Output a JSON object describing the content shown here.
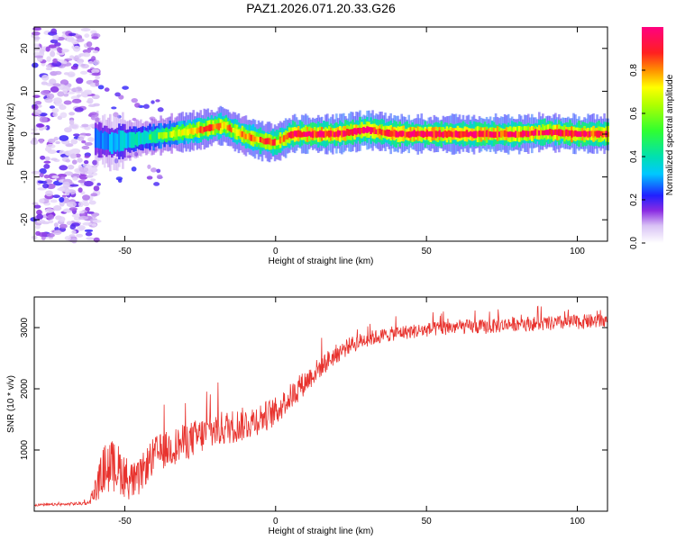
{
  "title": "PAZ1.2026.071.20.33.G26",
  "colors": {
    "background": "#ffffff",
    "snr_line": "#e8322d",
    "track_core": "#e8322d",
    "noise": "#8a2be2"
  },
  "chart_data": [
    {
      "type": "heatmap",
      "title": "PAZ1.2026.071.20.33.G26",
      "xlabel": "Height of straight line (km)",
      "ylabel": "Frequency (Hz)",
      "xlim": [
        -80,
        110
      ],
      "ylim": [
        -25,
        25
      ],
      "xticks": [
        -50,
        0,
        50,
        100
      ],
      "yticks": [
        -20,
        -10,
        0,
        10,
        20
      ],
      "colorbar": {
        "label": "Normalized spectral amplitude",
        "range": [
          0,
          1
        ],
        "ticks": [
          0.0,
          0.2,
          0.4,
          0.6,
          0.8
        ],
        "colormap": "white-violet-blue-cyan-green-yellow-red-magenta"
      },
      "noise_region_x": [
        -80,
        -60
      ],
      "ridge": {
        "x": [
          -60,
          -55,
          -50,
          -45,
          -40,
          -35,
          -30,
          -25,
          -20,
          -17,
          -15,
          -10,
          -5,
          0,
          5,
          10,
          15,
          20,
          25,
          30,
          35,
          40,
          50,
          60,
          70,
          80,
          90,
          100,
          110
        ],
        "freq": [
          -1.0,
          -2.0,
          -1.5,
          -1.0,
          -0.5,
          0.0,
          0.5,
          1.0,
          1.8,
          2.0,
          1.0,
          -0.5,
          -1.5,
          -2.0,
          0.0,
          0.0,
          0.0,
          0.0,
          0.5,
          1.0,
          0.5,
          0.0,
          0.0,
          0.0,
          0.0,
          0.0,
          0.5,
          0.0,
          0.0
        ],
        "amplitude": [
          0.35,
          0.4,
          0.45,
          0.5,
          0.55,
          0.65,
          0.75,
          0.8,
          0.85,
          0.8,
          0.75,
          0.8,
          0.85,
          0.8,
          0.9,
          0.95,
          0.95,
          0.95,
          0.9,
          0.95,
          0.9,
          0.95,
          0.95,
          0.9,
          0.95,
          0.9,
          0.9,
          0.95,
          0.9
        ]
      }
    },
    {
      "type": "line",
      "xlabel": "Height of straight line (km)",
      "ylabel": "SNR (10 * v/v)",
      "xlim": [
        -80,
        110
      ],
      "ylim": [
        0,
        3500
      ],
      "xticks": [
        -50,
        0,
        50,
        100
      ],
      "yticks": [
        1000,
        2000,
        3000
      ],
      "series": [
        {
          "name": "SNR",
          "x": [
            -80,
            -70,
            -62,
            -59,
            -57,
            -55,
            -52,
            -49,
            -46,
            -43,
            -40,
            -35,
            -30,
            -25,
            -20,
            -15,
            -10,
            -5,
            0,
            5,
            10,
            15,
            20,
            25,
            30,
            35,
            40,
            50,
            60,
            70,
            80,
            90,
            100,
            110
          ],
          "values": [
            100,
            110,
            130,
            400,
            650,
            700,
            650,
            500,
            450,
            700,
            900,
            1000,
            1100,
            1200,
            1300,
            1350,
            1400,
            1500,
            1600,
            1850,
            2100,
            2350,
            2550,
            2700,
            2800,
            2850,
            2900,
            2950,
            3000,
            3000,
            3050,
            3050,
            3080,
            3100
          ],
          "noise": [
            20,
            20,
            30,
            250,
            400,
            450,
            400,
            350,
            300,
            300,
            300,
            300,
            300,
            300,
            300,
            280,
            280,
            260,
            240,
            220,
            200,
            180,
            160,
            140,
            130,
            120,
            120,
            120,
            120,
            120,
            120,
            120,
            120,
            120
          ]
        }
      ]
    }
  ]
}
